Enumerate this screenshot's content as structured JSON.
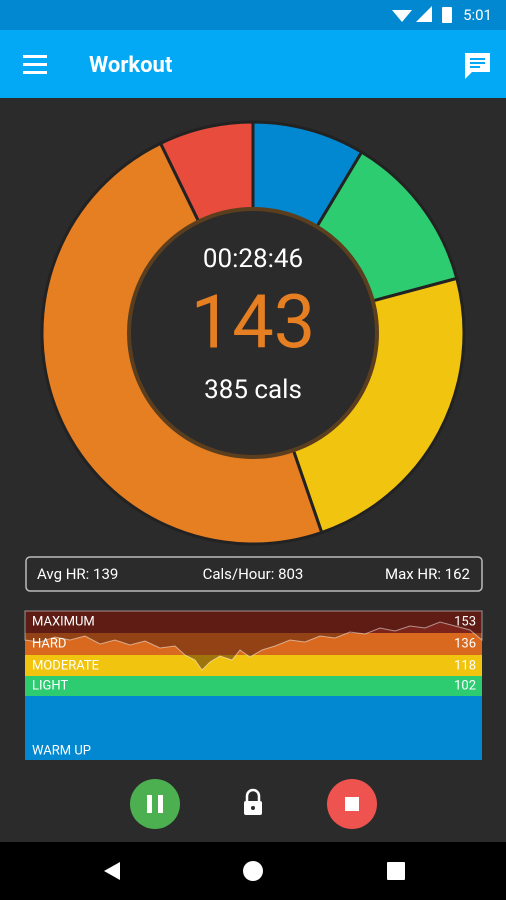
{
  "status_bar": {
    "time": "5:01"
  },
  "app_bar": {
    "title": "Workout"
  },
  "summary": {
    "timer": "00:28:46",
    "heart_rate": "143",
    "calories": "385 cals"
  },
  "stats": {
    "avg_hr": "Avg HR: 139",
    "cals_per_hour": "Cals/Hour: 803",
    "max_hr": "Max HR: 162"
  },
  "zones": [
    {
      "name": "MAXIMUM",
      "limit": "153"
    },
    {
      "name": "HARD",
      "limit": "136"
    },
    {
      "name": "MODERATE",
      "limit": "118"
    },
    {
      "name": "LIGHT",
      "limit": "102"
    },
    {
      "name": "WARM UP"
    }
  ]
}
